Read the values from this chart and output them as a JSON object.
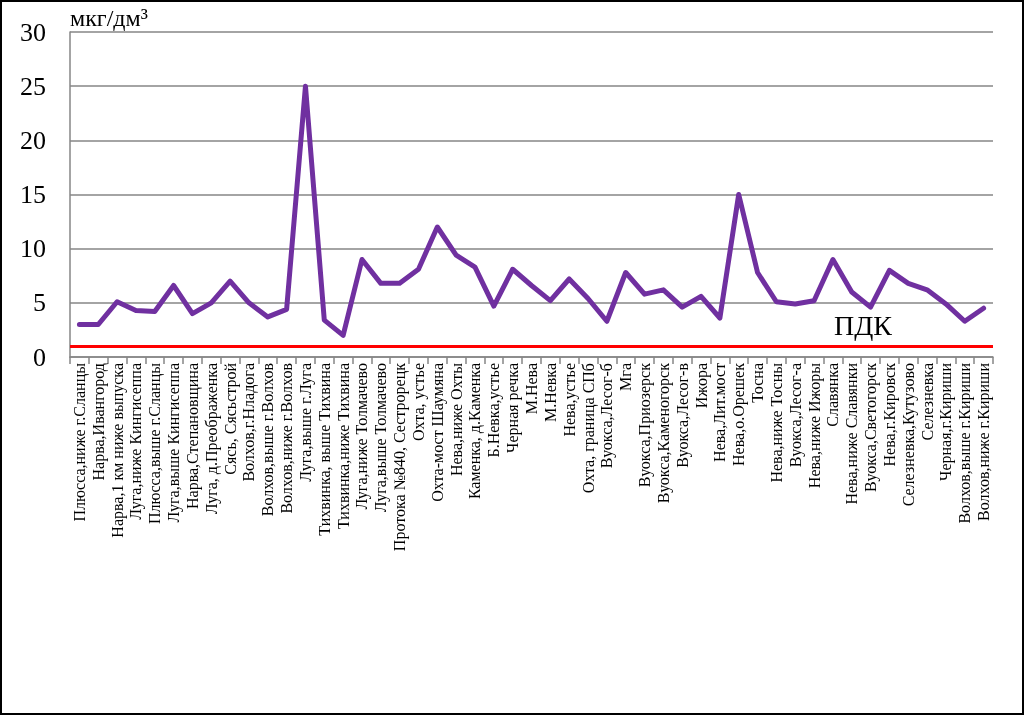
{
  "chart_data": {
    "type": "line",
    "ylabel": "мкг/дм³",
    "categories": [
      "Плюсса,ниже г.Сланцы",
      "Нарва,Ивангород",
      "Нарва,1 км ниже выпуска",
      "Луга,ниже Кингисеппа",
      "Плюсса,выше г.Сланцы",
      "Луга,выше Кингисеппа",
      "Нарва,Степановщина",
      "Луга, д.Преображенка",
      "Сясь, Сясьстрой",
      "Волхов,г.Нладога",
      "Волхов,выше г.Волхов",
      "Волхов,ниже г.Волхов",
      "Луга,выше г.Луга",
      "Тихвинка, выше Тихвина",
      "Тихвинка,ниже Тихвина",
      "Луга,ниже Толмачево",
      "Луга,выше Толмачево",
      "Протока №840, Сестрорецк",
      "Охта, устье",
      "Охта-мост Шаумяна",
      "Нева,ниже Охты",
      "Каменка, д.Каменка",
      "Б.Невка,устье",
      "Черная речка",
      "М.Нева",
      "М.Невка",
      "Нева,устье",
      "Охта, граница СПб",
      "Вуокса,Лесог-б",
      "Мга",
      "Вуокса,Приозерск",
      "Вуокса,Каменогорск",
      "Вуокса,Лесог-в",
      "Ижора",
      "Нева,Лит.мост",
      "Нева,о.Орешек",
      "Тосна",
      "Нева,ниже Тосны",
      "Вуокса,Лесог-а",
      "Нева,ниже Ижоры",
      "Славянка",
      "Нева,ниже Славянки",
      "Вуокса,Светогорск",
      "Нева,г.Кировск",
      "Селезневка,Кутузово",
      "Селезневка",
      "Черная,г.Кириши",
      "Волхов,выше г.Кириши",
      "Волхов,ниже г.Кириши"
    ],
    "values": [
      3.0,
      3.0,
      5.1,
      4.3,
      4.2,
      6.6,
      4.0,
      5.0,
      7.0,
      5.0,
      3.7,
      4.4,
      25,
      3.4,
      2.0,
      9.0,
      6.8,
      6.8,
      8.1,
      12.0,
      9.4,
      8.3,
      4.7,
      8.1,
      6.6,
      5.2,
      7.2,
      5.4,
      3.3,
      7.8,
      5.8,
      6.2,
      4.6,
      5.6,
      3.6,
      15.0,
      7.8,
      5.1,
      4.9,
      5.2,
      9.0,
      6.0,
      4.6,
      8.0,
      6.8,
      6.2,
      4.9,
      3.3,
      4.5
    ],
    "color": "#7030a0",
    "marker": "none",
    "ylim": [
      0,
      30
    ],
    "yticks": [
      0,
      5,
      10,
      15,
      20,
      25,
      30
    ],
    "grid": "y",
    "ref_lines": [
      {
        "axis": "y",
        "value": 1,
        "label": "ПДК",
        "color": "#ff0000"
      }
    ]
  }
}
